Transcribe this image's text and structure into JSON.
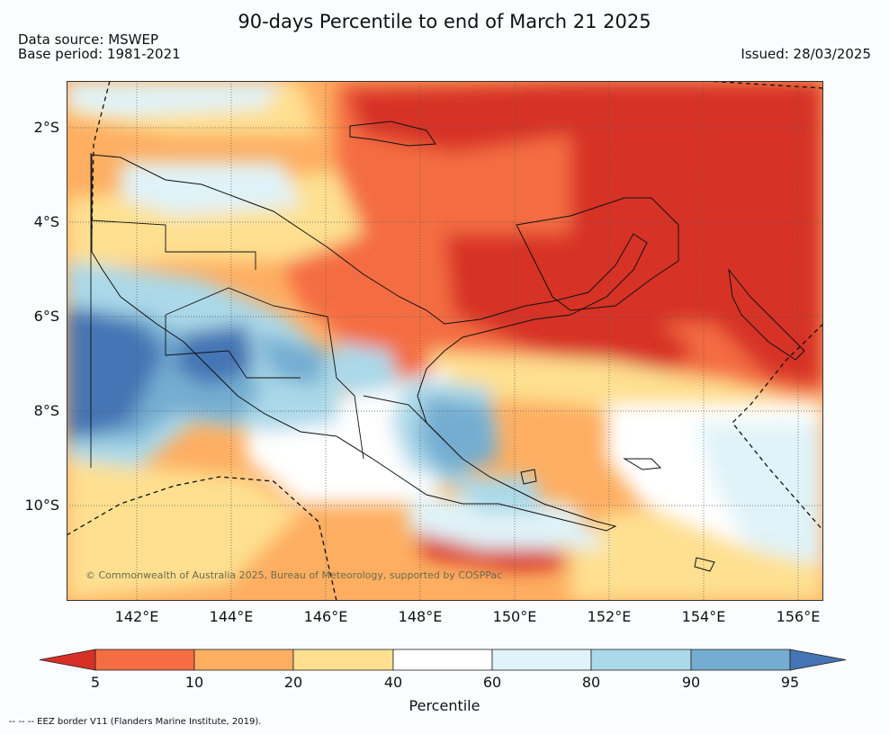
{
  "title": "90-days Percentile to end of March 21 2025",
  "data_source": "Data source: MSWEP",
  "base_period": "Base period: 1981-2021",
  "issued": "Issued: 28/03/2025",
  "copyright": "© Commonwealth of Australia 2025, Bureau of Meteorology, supported by COSPPac",
  "footnote": "--  --  -- EEZ border V11 (Flanders Marine Institute, 2019).",
  "map": {
    "lat_labels": [
      "2°S",
      "4°S",
      "6°S",
      "8°S",
      "10°S"
    ],
    "lon_labels": [
      "142°E",
      "144°E",
      "146°E",
      "148°E",
      "150°E",
      "152°E",
      "154°E",
      "156°E"
    ]
  },
  "colorbar": {
    "title": "Percentile",
    "tick_labels": [
      "5",
      "10",
      "20",
      "40",
      "60",
      "80",
      "90",
      "95"
    ],
    "colors": {
      "below_5": "#d73027",
      "5_10": "#f46d43",
      "10_20": "#fdae61",
      "20_40": "#fee090",
      "40_60": "#ffffff",
      "60_80": "#e0f3f8",
      "80_90": "#abd9e9",
      "90_95": "#74add1",
      "above_95": "#4575b4"
    }
  }
}
